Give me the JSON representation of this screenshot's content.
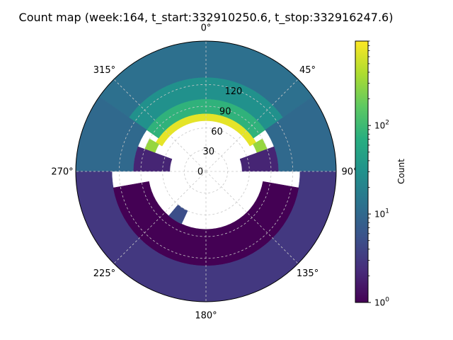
{
  "chart_data": {
    "type": "polar_heatmap",
    "title": "Count map (week:164, t_start:332910250.6, t_stop:332916247.6)",
    "theta_direction": "clockwise",
    "theta_zero": "top",
    "theta_ticks": [
      {
        "deg": 0,
        "label": "0°"
      },
      {
        "deg": 45,
        "label": "45°"
      },
      {
        "deg": 90,
        "label": "90°"
      },
      {
        "deg": 135,
        "label": "135°"
      },
      {
        "deg": 180,
        "label": "180°"
      },
      {
        "deg": 225,
        "label": "225°"
      },
      {
        "deg": 270,
        "label": "270°"
      },
      {
        "deg": 315,
        "label": "315°"
      }
    ],
    "r_ticks": [
      {
        "value": 0,
        "label": "0"
      },
      {
        "value": 30,
        "label": "30"
      },
      {
        "value": 60,
        "label": "60"
      },
      {
        "value": 90,
        "label": "90"
      },
      {
        "value": 120,
        "label": "120"
      }
    ],
    "r_range": [
      0,
      180
    ],
    "grid": true,
    "colorbar": {
      "label": "Count",
      "scale": "log",
      "range": [
        1,
        900
      ],
      "colormap": "viridis",
      "ticks": [
        {
          "value": 1,
          "base": "10",
          "exp": "0"
        },
        {
          "value": 10,
          "base": "10",
          "exp": "1"
        },
        {
          "value": 100,
          "base": "10",
          "exp": "2"
        }
      ]
    },
    "regions": [
      {
        "theta": [
          -60,
          60
        ],
        "r": [
          70,
          80
        ],
        "count": 700
      },
      {
        "theta": [
          -75,
          -60
        ],
        "r": [
          75,
          90
        ],
        "count": 300
      },
      {
        "theta": [
          60,
          75
        ],
        "r": [
          75,
          90
        ],
        "count": 300
      },
      {
        "theta": [
          -55,
          55
        ],
        "r": [
          80,
          100
        ],
        "count": 80
      },
      {
        "theta": [
          -55,
          55
        ],
        "r": [
          100,
          130
        ],
        "count": 30
      },
      {
        "theta": [
          -55,
          55
        ],
        "r": [
          130,
          180
        ],
        "count": 12
      },
      {
        "theta": [
          -90,
          -55
        ],
        "r": [
          100,
          180
        ],
        "count": 10
      },
      {
        "theta": [
          55,
          90
        ],
        "r": [
          100,
          180
        ],
        "count": 10
      },
      {
        "theta": [
          -90,
          -70
        ],
        "r": [
          50,
          100
        ],
        "count": 2
      },
      {
        "theta": [
          70,
          90
        ],
        "r": [
          50,
          100
        ],
        "count": 2
      },
      {
        "theta": [
          90,
          270
        ],
        "r": [
          130,
          180
        ],
        "count": 3
      },
      {
        "theta": [
          100,
          260
        ],
        "r": [
          80,
          130
        ],
        "count": 1
      },
      {
        "theta": [
          205,
          220
        ],
        "r": [
          60,
          80
        ],
        "count": 5
      }
    ]
  }
}
